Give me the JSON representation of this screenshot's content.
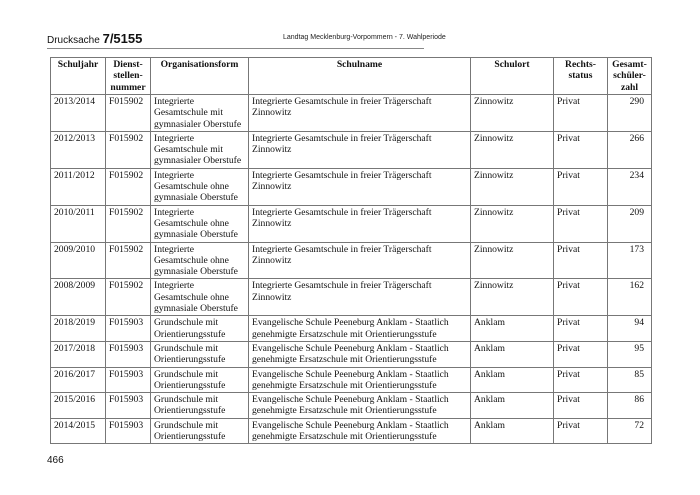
{
  "header": {
    "doc_label": "Drucksache",
    "doc_number": "7/5155",
    "parliament": "Landtag Mecklenburg-Vorpommern - 7. Wahlperiode"
  },
  "table": {
    "columns": [
      "Schuljahr",
      "Dienst-\nstellen-\nnummer",
      "Organisationsform",
      "Schulname",
      "Schulort",
      "Rechts-\nstatus",
      "Gesamt-\nschüler-\nzahl"
    ],
    "rows": [
      [
        "2013/2014",
        "F015902",
        "Integrierte Gesamtschule mit gymnasialer Oberstufe",
        "Integrierte Gesamtschule in freier Trägerschaft Zinnowitz",
        "Zinnowitz",
        "Privat",
        "290"
      ],
      [
        "2012/2013",
        "F015902",
        "Integrierte Gesamtschule mit gymnasialer Oberstufe",
        "Integrierte Gesamtschule in freier Trägerschaft Zinnowitz",
        "Zinnowitz",
        "Privat",
        "266"
      ],
      [
        "2011/2012",
        "F015902",
        "Integrierte Gesamtschule ohne gymnasiale Oberstufe",
        "Integrierte Gesamtschule in freier Trägerschaft Zinnowitz",
        "Zinnowitz",
        "Privat",
        "234"
      ],
      [
        "2010/2011",
        "F015902",
        "Integrierte Gesamtschule ohne gymnasiale Oberstufe",
        "Integrierte Gesamtschule in freier Trägerschaft Zinnowitz",
        "Zinnowitz",
        "Privat",
        "209"
      ],
      [
        "2009/2010",
        "F015902",
        "Integrierte Gesamtschule ohne gymnasiale Oberstufe",
        "Integrierte Gesamtschule in freier Trägerschaft Zinnowitz",
        "Zinnowitz",
        "Privat",
        "173"
      ],
      [
        "2008/2009",
        "F015902",
        "Integrierte Gesamtschule ohne gymnasiale Oberstufe",
        "Integrierte Gesamtschule in freier Trägerschaft Zinnowitz",
        "Zinnowitz",
        "Privat",
        "162"
      ],
      [
        "2018/2019",
        "F015903",
        "Grundschule mit Orientierungsstufe",
        "Evangelische Schule Peeneburg Anklam - Staatlich genehmigte Ersatzschule mit Orientierungsstufe",
        "Anklam",
        "Privat",
        "94"
      ],
      [
        "2017/2018",
        "F015903",
        "Grundschule mit Orientierungsstufe",
        "Evangelische Schule Peeneburg Anklam - Staatlich genehmigte Ersatzschule mit Orientierungsstufe",
        "Anklam",
        "Privat",
        "95"
      ],
      [
        "2016/2017",
        "F015903",
        "Grundschule mit Orientierungsstufe",
        "Evangelische Schule Peeneburg Anklam - Staatlich genehmigte Ersatzschule mit Orientierungsstufe",
        "Anklam",
        "Privat",
        "85"
      ],
      [
        "2015/2016",
        "F015903",
        "Grundschule mit Orientierungsstufe",
        "Evangelische Schule Peeneburg Anklam - Staatlich genehmigte Ersatzschule mit Orientierungsstufe",
        "Anklam",
        "Privat",
        "86"
      ],
      [
        "2014/2015",
        "F015903",
        "Grundschule mit Orientierungsstufe",
        "Evangelische Schule Peeneburg Anklam - Staatlich genehmigte Ersatzschule mit Orientierungsstufe",
        "Anklam",
        "Privat",
        "72"
      ]
    ]
  },
  "footer": {
    "page_number": "466"
  }
}
